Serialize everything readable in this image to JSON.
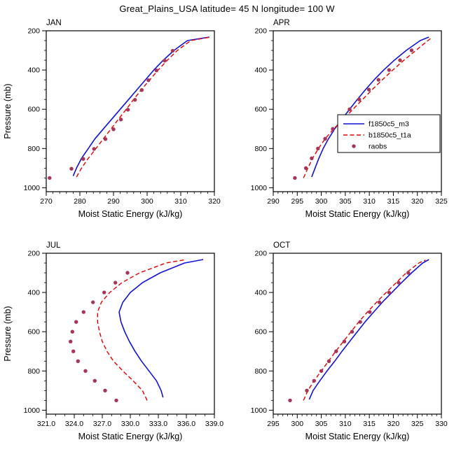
{
  "page": {
    "title": "Great_Plains_USA  latitude= 45 N longitude= 100 W",
    "background": "#ffffff",
    "text_color": "#000000"
  },
  "chart_data": [
    {
      "type": "line",
      "title": "JAN",
      "xlabel": "Moist Static Energy (kJ/kg)",
      "ylabel": "Pressure (mb)",
      "show_ylabel": true,
      "show_legend": false,
      "xlim": [
        270,
        320
      ],
      "xticks": [
        270,
        280,
        290,
        300,
        310,
        320
      ],
      "xtick_labels": [
        "270",
        "280",
        "290",
        "300",
        "310",
        "320"
      ],
      "x_minor_step": 2,
      "ylim": [
        200,
        1020
      ],
      "yticks": [
        200,
        400,
        600,
        800,
        1000
      ],
      "ytick_labels": [
        "200",
        "400",
        "600",
        "800",
        "1000"
      ],
      "y_minor_step": 50,
      "y_axis_note": "pressure increases downward",
      "series": [
        {
          "name": "f1850c5_m3",
          "style": "solid",
          "color": "#1212d6",
          "points": [
            [
              278.0,
              940
            ],
            [
              279.0,
              900
            ],
            [
              280.5,
              850
            ],
            [
              282.5,
              800
            ],
            [
              284.5,
              750
            ],
            [
              287.0,
              700
            ],
            [
              289.5,
              650
            ],
            [
              292.0,
              600
            ],
            [
              294.5,
              550
            ],
            [
              297.0,
              500
            ],
            [
              299.5,
              450
            ],
            [
              302.0,
              400
            ],
            [
              304.8,
              350
            ],
            [
              308.0,
              300
            ],
            [
              312.0,
              250
            ],
            [
              318.5,
              232
            ]
          ]
        },
        {
          "name": "b1850c5_t1a",
          "style": "dashed",
          "color": "#e60000",
          "points": [
            [
              279.0,
              945
            ],
            [
              280.5,
              900
            ],
            [
              282.5,
              850
            ],
            [
              284.8,
              800
            ],
            [
              287.0,
              750
            ],
            [
              289.3,
              700
            ],
            [
              291.5,
              650
            ],
            [
              293.8,
              600
            ],
            [
              296.0,
              550
            ],
            [
              298.3,
              500
            ],
            [
              300.8,
              450
            ],
            [
              303.3,
              400
            ],
            [
              306.0,
              350
            ],
            [
              309.0,
              300
            ],
            [
              313.0,
              250
            ],
            [
              318.8,
              232
            ]
          ]
        },
        {
          "name": "raobs",
          "style": "dots",
          "color": "#a83555",
          "points": [
            [
              271.0,
              950
            ],
            [
              277.5,
              903
            ],
            [
              281.0,
              853
            ],
            [
              284.2,
              802
            ],
            [
              287.6,
              752
            ],
            [
              290.0,
              702
            ],
            [
              292.2,
              652
            ],
            [
              294.3,
              602
            ],
            [
              296.4,
              552
            ],
            [
              298.4,
              502
            ],
            [
              300.4,
              452
            ],
            [
              302.8,
              402
            ],
            [
              305.2,
              352
            ],
            [
              307.6,
              302
            ]
          ]
        }
      ]
    },
    {
      "type": "line",
      "title": "APR",
      "xlabel": "Moist Static Energy (kJ/kg)",
      "ylabel": "Pressure (mb)",
      "show_ylabel": false,
      "show_legend": true,
      "xlim": [
        290,
        325
      ],
      "xticks": [
        290,
        295,
        300,
        305,
        310,
        315,
        320,
        325
      ],
      "xtick_labels": [
        "290",
        "295",
        "300",
        "305",
        "310",
        "315",
        "320",
        "325"
      ],
      "x_minor_step": 1,
      "ylim": [
        200,
        1020
      ],
      "yticks": [
        200,
        400,
        600,
        800,
        1000
      ],
      "ytick_labels": [
        "200",
        "400",
        "600",
        "800",
        "1000"
      ],
      "y_minor_step": 50,
      "series": [
        {
          "name": "f1850c5_m3",
          "style": "solid",
          "color": "#1212d6",
          "points": [
            [
              298.0,
              945
            ],
            [
              298.7,
              900
            ],
            [
              299.5,
              850
            ],
            [
              300.4,
              800
            ],
            [
              301.5,
              750
            ],
            [
              302.8,
              700
            ],
            [
              304.3,
              650
            ],
            [
              305.9,
              600
            ],
            [
              307.5,
              550
            ],
            [
              309.2,
              500
            ],
            [
              311.0,
              450
            ],
            [
              313.0,
              400
            ],
            [
              315.2,
              350
            ],
            [
              317.7,
              300
            ],
            [
              320.6,
              250
            ],
            [
              322.4,
              232
            ]
          ]
        },
        {
          "name": "b1850c5_t1a",
          "style": "dashed",
          "color": "#e60000",
          "points": [
            [
              296.3,
              950
            ],
            [
              297.2,
              900
            ],
            [
              298.2,
              850
            ],
            [
              299.4,
              800
            ],
            [
              300.8,
              750
            ],
            [
              302.6,
              700
            ],
            [
              304.6,
              650
            ],
            [
              306.6,
              600
            ],
            [
              308.6,
              550
            ],
            [
              310.6,
              500
            ],
            [
              312.7,
              450
            ],
            [
              314.9,
              400
            ],
            [
              317.2,
              350
            ],
            [
              319.7,
              300
            ],
            [
              322.2,
              250
            ],
            [
              323.0,
              235
            ]
          ]
        },
        {
          "name": "raobs",
          "style": "dots",
          "color": "#a83555",
          "points": [
            [
              294.5,
              950
            ],
            [
              296.8,
              900
            ],
            [
              298.0,
              850
            ],
            [
              299.3,
              800
            ],
            [
              300.8,
              750
            ],
            [
              302.4,
              700
            ],
            [
              304.1,
              650
            ],
            [
              305.9,
              600
            ],
            [
              307.9,
              550
            ],
            [
              309.9,
              500
            ],
            [
              311.9,
              450
            ],
            [
              314.1,
              400
            ],
            [
              316.4,
              350
            ],
            [
              318.8,
              300
            ]
          ]
        }
      ]
    },
    {
      "type": "line",
      "title": "JUL",
      "xlabel": "Moist Static Energy (kJ/kg)",
      "ylabel": "Pressure (mb)",
      "show_ylabel": true,
      "show_legend": false,
      "xlim": [
        321,
        339
      ],
      "xticks": [
        321,
        324,
        327,
        330,
        333,
        336,
        339
      ],
      "xtick_labels": [
        "321.0",
        "324.0",
        "327.0",
        "330.0",
        "333.0",
        "336.0",
        "339.0"
      ],
      "x_minor_step": 1,
      "ylim": [
        200,
        1020
      ],
      "yticks": [
        200,
        400,
        600,
        800,
        1000
      ],
      "ytick_labels": [
        "200",
        "400",
        "600",
        "800",
        "1000"
      ],
      "y_minor_step": 50,
      "series": [
        {
          "name": "f1850c5_m3",
          "style": "solid",
          "color": "#1212d6",
          "points": [
            [
              333.5,
              935
            ],
            [
              333.3,
              900
            ],
            [
              332.8,
              850
            ],
            [
              332.0,
              800
            ],
            [
              331.2,
              750
            ],
            [
              330.5,
              700
            ],
            [
              329.9,
              650
            ],
            [
              329.4,
              600
            ],
            [
              329.0,
              550
            ],
            [
              328.8,
              500
            ],
            [
              329.2,
              450
            ],
            [
              330.0,
              400
            ],
            [
              331.3,
              350
            ],
            [
              333.2,
              300
            ],
            [
              335.8,
              250
            ],
            [
              337.8,
              232
            ]
          ]
        },
        {
          "name": "b1850c5_t1a",
          "style": "dashed",
          "color": "#e60000",
          "points": [
            [
              331.8,
              950
            ],
            [
              331.3,
              900
            ],
            [
              330.3,
              850
            ],
            [
              329.2,
              800
            ],
            [
              328.2,
              750
            ],
            [
              327.5,
              700
            ],
            [
              327.0,
              650
            ],
            [
              326.7,
              600
            ],
            [
              326.5,
              550
            ],
            [
              326.5,
              500
            ],
            [
              326.9,
              450
            ],
            [
              327.8,
              400
            ],
            [
              329.1,
              350
            ],
            [
              331.0,
              300
            ],
            [
              333.8,
              250
            ],
            [
              336.0,
              232
            ]
          ]
        },
        {
          "name": "raobs",
          "style": "dots",
          "color": "#a83555",
          "points": [
            [
              328.5,
              950
            ],
            [
              327.3,
              900
            ],
            [
              326.2,
              850
            ],
            [
              325.2,
              800
            ],
            [
              324.4,
              750
            ],
            [
              323.9,
              700
            ],
            [
              323.6,
              650
            ],
            [
              323.8,
              600
            ],
            [
              324.2,
              550
            ],
            [
              325.0,
              500
            ],
            [
              326.0,
              450
            ],
            [
              327.2,
              400
            ],
            [
              328.4,
              350
            ],
            [
              329.7,
              300
            ]
          ]
        }
      ]
    },
    {
      "type": "line",
      "title": "OCT",
      "xlabel": "Moist Static Energy (kJ/kg)",
      "ylabel": "Pressure (mb)",
      "show_ylabel": false,
      "show_legend": false,
      "xlim": [
        295,
        330
      ],
      "xticks": [
        295,
        300,
        305,
        310,
        315,
        320,
        325,
        330
      ],
      "xtick_labels": [
        "295",
        "300",
        "305",
        "310",
        "315",
        "320",
        "325",
        "330"
      ],
      "x_minor_step": 1,
      "ylim": [
        200,
        1020
      ],
      "yticks": [
        200,
        400,
        600,
        800,
        1000
      ],
      "ytick_labels": [
        "200",
        "400",
        "600",
        "800",
        "1000"
      ],
      "y_minor_step": 50,
      "series": [
        {
          "name": "f1850c5_m3",
          "style": "solid",
          "color": "#1212d6",
          "points": [
            [
              302.5,
              945
            ],
            [
              303.3,
              900
            ],
            [
              304.7,
              850
            ],
            [
              306.2,
              800
            ],
            [
              307.8,
              750
            ],
            [
              309.3,
              700
            ],
            [
              310.9,
              650
            ],
            [
              312.5,
              600
            ],
            [
              314.1,
              550
            ],
            [
              315.9,
              500
            ],
            [
              317.7,
              450
            ],
            [
              319.7,
              400
            ],
            [
              321.7,
              350
            ],
            [
              323.8,
              300
            ],
            [
              326.1,
              250
            ],
            [
              327.4,
              232
            ]
          ]
        },
        {
          "name": "b1850c5_t1a",
          "style": "dashed",
          "color": "#e60000",
          "points": [
            [
              301.3,
              950
            ],
            [
              302.2,
              900
            ],
            [
              303.5,
              850
            ],
            [
              305.0,
              800
            ],
            [
              306.5,
              750
            ],
            [
              308.0,
              700
            ],
            [
              309.6,
              650
            ],
            [
              311.2,
              600
            ],
            [
              312.8,
              550
            ],
            [
              314.6,
              500
            ],
            [
              316.5,
              450
            ],
            [
              318.5,
              400
            ],
            [
              320.6,
              350
            ],
            [
              322.7,
              300
            ],
            [
              325.3,
              250
            ],
            [
              326.7,
              235
            ]
          ]
        },
        {
          "name": "raobs",
          "style": "dots",
          "color": "#a83555",
          "points": [
            [
              298.5,
              950
            ],
            [
              302.0,
              900
            ],
            [
              303.5,
              850
            ],
            [
              305.0,
              800
            ],
            [
              306.6,
              750
            ],
            [
              308.1,
              700
            ],
            [
              309.8,
              650
            ],
            [
              311.4,
              600
            ],
            [
              313.1,
              550
            ],
            [
              315.1,
              500
            ],
            [
              317.1,
              450
            ],
            [
              319.1,
              400
            ],
            [
              321.1,
              350
            ],
            [
              323.1,
              300
            ]
          ]
        }
      ]
    }
  ]
}
